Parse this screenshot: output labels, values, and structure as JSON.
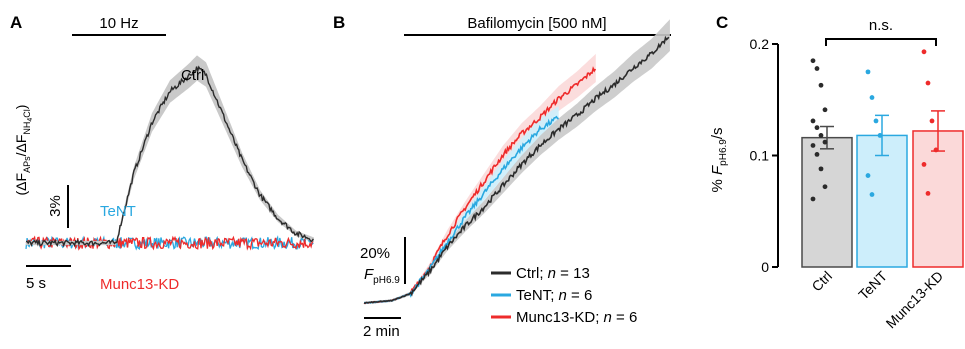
{
  "colors": {
    "ctrl": "#2b2b2b",
    "tent": "#2aa8e0",
    "munc": "#ee2b2b",
    "ctrl_band": "#c9c9c9",
    "tent_bar": "#cdeefb",
    "munc_bar": "#fbd9d9",
    "ctrl_bar": "#d6d6d6"
  },
  "panels": {
    "a": {
      "letter": "A",
      "stim_label": "10 Hz",
      "ylabel": "(ΔF_APs/ΔF_NH4Cl)",
      "ylabel_main": "(ΔF",
      "ylabel_sub1": "APs",
      "ylabel_mid": "/ΔF",
      "ylabel_sub2": "NH",
      "ylabel_sub3": "4",
      "ylabel_end": "Cl",
      "ylabel_close": ")",
      "yscale_label": "3%",
      "xscale_label": "5 s",
      "label_ctrl": "Ctrl",
      "label_tent": "TeNT",
      "label_munc": "Munc13-KD"
    },
    "b": {
      "letter": "B",
      "drug_label": "Bafilomycin [500 nM]",
      "yscale_label": "20%",
      "ylabel_main": "F",
      "ylabel_sub": "pH6.9",
      "xscale_label": "2 min"
    },
    "c": {
      "letter": "C",
      "sig_label": "n.s.",
      "ylabel_prefix": "% ",
      "ylabel_main": "F",
      "ylabel_sub": "pH6.9",
      "ylabel_suffix": "/s"
    }
  },
  "legend": [
    {
      "name": "Ctrl",
      "n_label": "n",
      "n_value": " = 13",
      "color_key": "ctrl"
    },
    {
      "name": "TeNT",
      "n_label": "n",
      "n_value": " = 6",
      "color_key": "tent"
    },
    {
      "name": "Munc13-KD",
      "n_label": "n",
      "n_value": " = 6",
      "color_key": "munc"
    }
  ],
  "chart_data": [
    {
      "type": "line",
      "panel": "A",
      "title": "",
      "xlabel": "",
      "ylabel": "(ΔF_APs/ΔF_NH4Cl)",
      "x_unit": "s",
      "scale_bars": {
        "x": "5 s",
        "y": "3%"
      },
      "stimulus": {
        "label": "10 Hz",
        "start_s": 10,
        "end_s": 20
      },
      "series": [
        {
          "name": "Ctrl",
          "x": [
            0,
            10,
            12,
            14,
            16,
            18,
            19,
            20,
            22,
            24,
            26,
            28,
            30,
            32
          ],
          "values": [
            0,
            0,
            6.6,
            11.3,
            14.2,
            15.6,
            16.4,
            15.8,
            11.8,
            7.8,
            4.5,
            2.3,
            0.9,
            0.3
          ]
        },
        {
          "name": "TeNT",
          "x": [
            0,
            32
          ],
          "values": [
            0,
            0
          ]
        },
        {
          "name": "Munc13-KD",
          "x": [
            0,
            32
          ],
          "values": [
            0,
            0
          ]
        }
      ]
    },
    {
      "type": "line",
      "panel": "B",
      "title": "",
      "xlabel": "",
      "ylabel": "F pH6.9",
      "x_unit": "min",
      "scale_bars": {
        "x": "2 min",
        "y": "20%"
      },
      "treatment": {
        "label": "Bafilomycin [500 nM]"
      },
      "series": [
        {
          "name": "Ctrl; n = 13",
          "x": [
            0,
            3,
            5,
            7,
            9,
            11,
            13,
            15,
            17,
            19,
            21,
            23,
            25,
            27,
            29,
            31,
            33
          ],
          "values": [
            0,
            1,
            4,
            13,
            24,
            33,
            41,
            50,
            59,
            67,
            74,
            80,
            87,
            93,
            100,
            106,
            114
          ]
        },
        {
          "name": "TeNT; n = 6",
          "x": [
            0,
            3,
            5,
            7,
            9,
            11,
            13,
            15,
            17,
            19,
            21
          ],
          "values": [
            0,
            1,
            4,
            14,
            26,
            37,
            47,
            57,
            66,
            74,
            79
          ]
        },
        {
          "name": "Munc13-KD; n = 6",
          "x": [
            0,
            3,
            5,
            7,
            9,
            11,
            13,
            15,
            17,
            19,
            21,
            23,
            25
          ],
          "values": [
            0,
            1,
            4,
            15,
            29,
            41,
            52,
            63,
            72,
            79,
            87,
            93,
            100
          ]
        }
      ]
    },
    {
      "type": "bar",
      "panel": "C",
      "title": "",
      "categories": [
        "Ctrl",
        "TeNT",
        "Munc13-KD"
      ],
      "values": [
        0.116,
        0.118,
        0.122
      ],
      "errors": [
        0.01,
        0.018,
        0.018
      ],
      "points": [
        [
          0.185,
          0.178,
          0.163,
          0.141,
          0.131,
          0.125,
          0.118,
          0.112,
          0.109,
          0.101,
          0.088,
          0.072,
          0.061
        ],
        [
          0.175,
          0.152,
          0.131,
          0.118,
          0.082,
          0.065
        ],
        [
          0.193,
          0.165,
          0.131,
          0.105,
          0.092,
          0.066
        ]
      ],
      "xlabel": "",
      "ylabel": "% F pH6.9/s",
      "ylim": [
        0,
        0.2
      ],
      "yticks": [
        "0",
        "0.1",
        "0.2"
      ],
      "annotations": [
        "n.s."
      ],
      "grid": false
    }
  ]
}
